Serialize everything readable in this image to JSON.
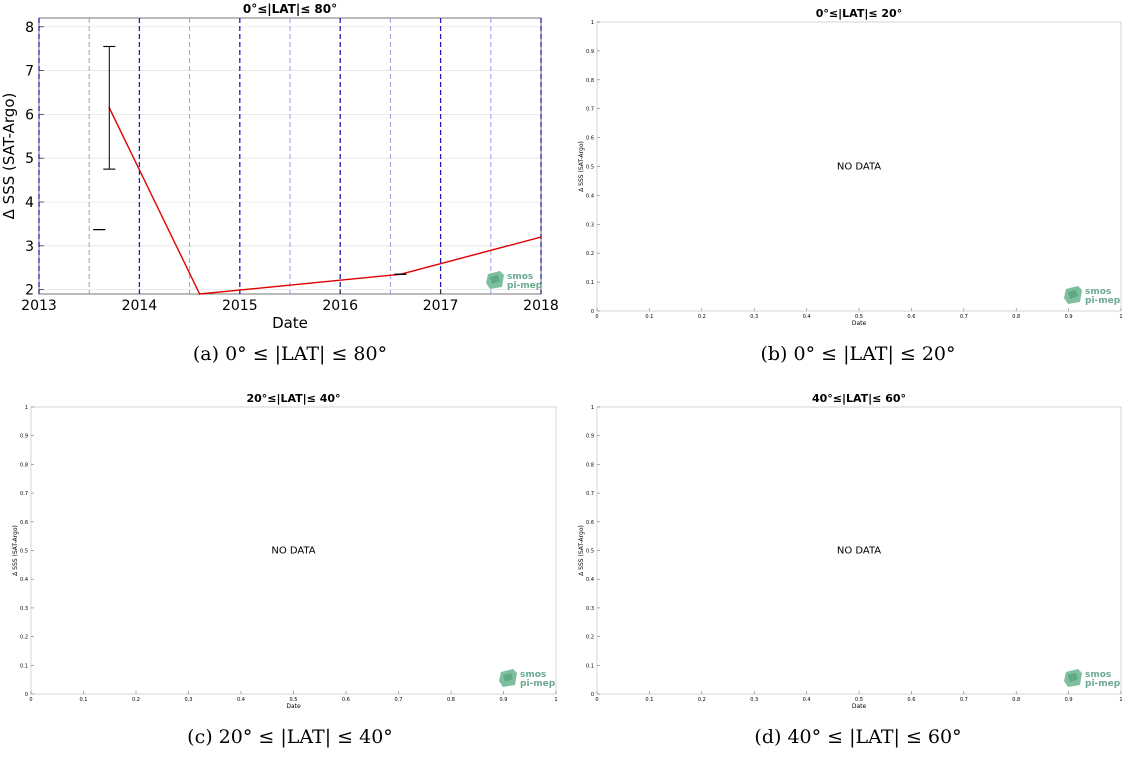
{
  "chart_data": [
    {
      "type": "line",
      "title": "0°≤|LAT|≤ 80°",
      "caption": "(a) 0° ≤ |LAT| ≤ 80°",
      "xlabel": "Date",
      "ylabel": "Δ SSS (SAT-Argo)",
      "xlim": [
        2013,
        2018
      ],
      "ylim": [
        1.9,
        8.2
      ],
      "xticks": [
        "2013",
        "2014",
        "2015",
        "2016",
        "2017",
        "2018"
      ],
      "yticks": [
        "2",
        "3",
        "4",
        "5",
        "6",
        "7",
        "8"
      ],
      "grid": true,
      "series": [
        {
          "color": "#e00000",
          "points": [
            {
              "x": 2013.7,
              "y": 6.15
            },
            {
              "x": 2014.6,
              "y": 1.9
            },
            {
              "x": 2016.6,
              "y": 2.35
            },
            {
              "x": 2018.0,
              "y": 3.2
            }
          ]
        }
      ],
      "errorbars": [
        {
          "x": 2013.7,
          "low": 4.75,
          "high": 7.55
        },
        {
          "x": 2013.6,
          "low": 3.37,
          "high": 3.37
        },
        {
          "x": 2016.6,
          "low": 2.35,
          "high": 2.35
        }
      ],
      "logo": [
        "smos",
        "pi-mep"
      ]
    },
    {
      "type": "line",
      "title": "0°≤|LAT|≤ 20°",
      "caption": "(b) 0° ≤ |LAT| ≤ 20°",
      "xlabel": "Date",
      "ylabel": "Δ SSS (SAT-Argo)",
      "xlim": [
        0,
        1
      ],
      "ylim": [
        0,
        1
      ],
      "xticks": [
        "0",
        "0.1",
        "0.2",
        "0.3",
        "0.4",
        "0.5",
        "0.6",
        "0.7",
        "0.8",
        "0.9",
        "1"
      ],
      "yticks": [
        "0",
        "0.1",
        "0.2",
        "0.3",
        "0.4",
        "0.5",
        "0.6",
        "0.7",
        "0.8",
        "0.9",
        "1"
      ],
      "annotation": "NO DATA",
      "logo": [
        "smos",
        "pi-mep"
      ]
    },
    {
      "type": "line",
      "title": "20°≤|LAT|≤ 40°",
      "caption": "(c) 20° ≤ |LAT| ≤ 40°",
      "xlabel": "Date",
      "ylabel": "Δ SSS (SAT-Argo)",
      "xlim": [
        0,
        1
      ],
      "ylim": [
        0,
        1
      ],
      "xticks": [
        "0",
        "0.1",
        "0.2",
        "0.3",
        "0.4",
        "0.5",
        "0.6",
        "0.7",
        "0.8",
        "0.9",
        "1"
      ],
      "yticks": [
        "0",
        "0.1",
        "0.2",
        "0.3",
        "0.4",
        "0.5",
        "0.6",
        "0.7",
        "0.8",
        "0.9",
        "1"
      ],
      "annotation": "NO DATA",
      "logo": [
        "smos",
        "pi-mep"
      ]
    },
    {
      "type": "line",
      "title": "40°≤|LAT|≤ 60°",
      "caption": "(d) 40° ≤ |LAT| ≤ 60°",
      "xlabel": "Date",
      "ylabel": "Δ SSS (SAT-Argo)",
      "xlim": [
        0,
        1
      ],
      "ylim": [
        0,
        1
      ],
      "xticks": [
        "0",
        "0.1",
        "0.2",
        "0.3",
        "0.4",
        "0.5",
        "0.6",
        "0.7",
        "0.8",
        "0.9",
        "1"
      ],
      "yticks": [
        "0",
        "0.1",
        "0.2",
        "0.3",
        "0.4",
        "0.5",
        "0.6",
        "0.7",
        "0.8",
        "0.9",
        "1"
      ],
      "annotation": "NO DATA",
      "logo": [
        "smos",
        "pi-mep"
      ]
    }
  ]
}
